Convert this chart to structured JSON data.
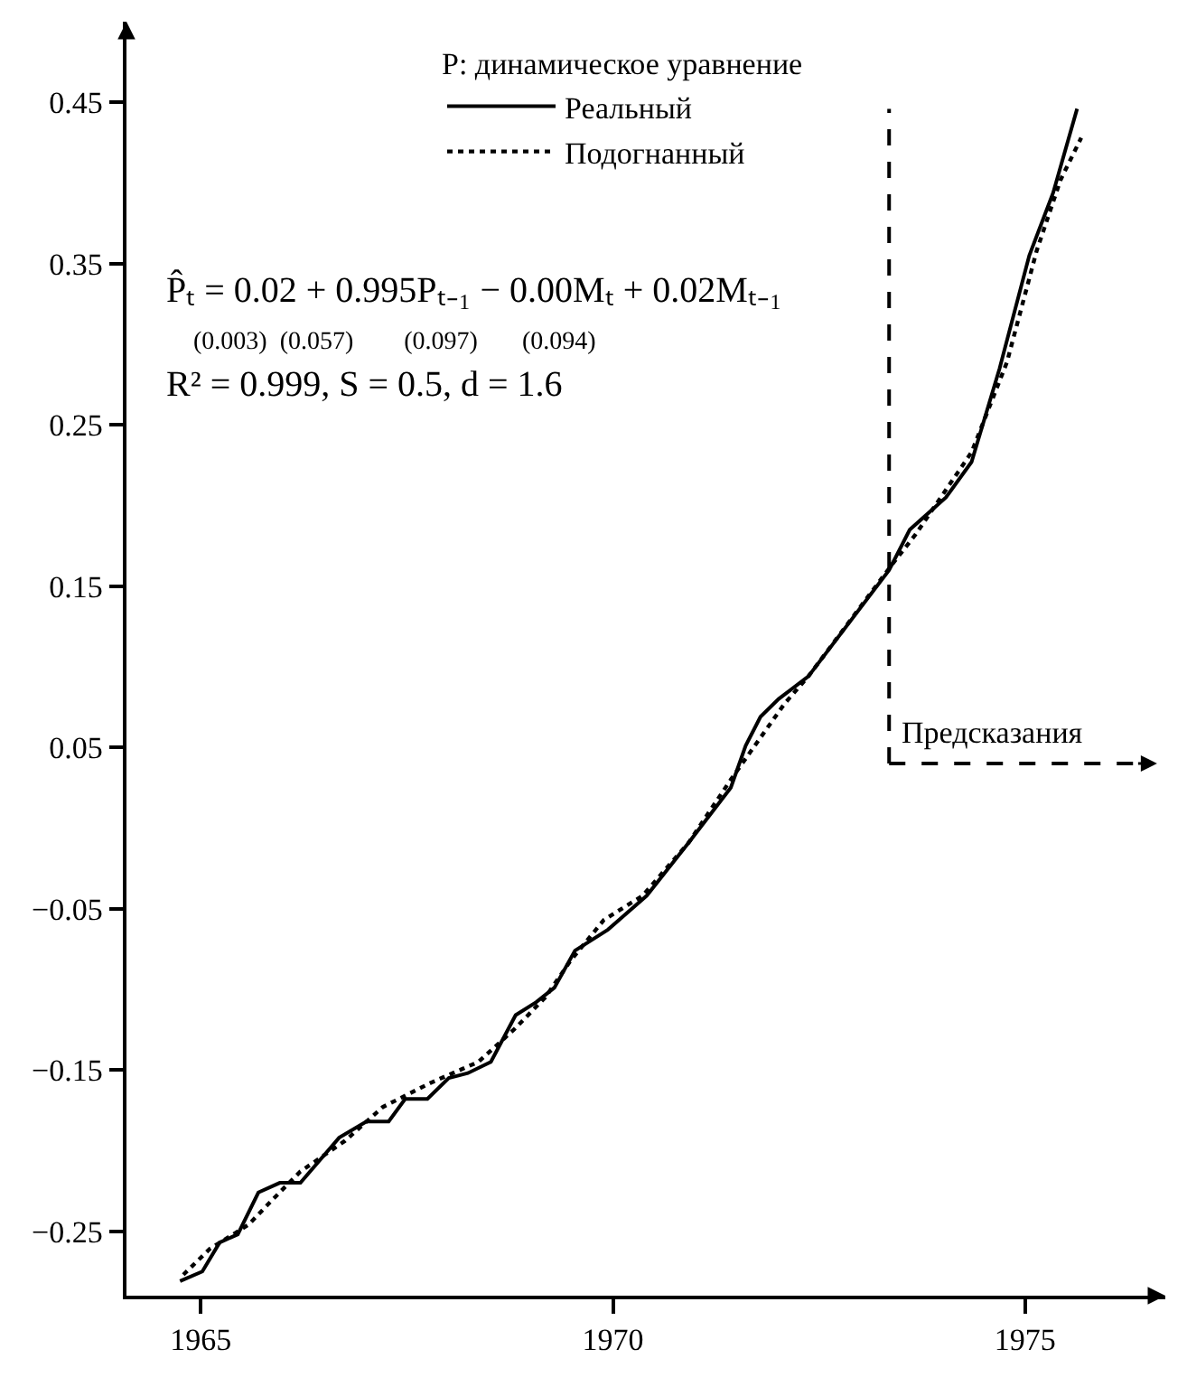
{
  "chart_data": {
    "type": "line",
    "legend_title": "P: динамическое уравнение",
    "series": [
      {
        "name": "Реальный",
        "color": "#000000",
        "line_style": "solid",
        "x": [
          1964.75,
          1965.02,
          1965.23,
          1965.45,
          1965.7,
          1965.96,
          1966.21,
          1966.68,
          1967.01,
          1967.28,
          1967.48,
          1967.75,
          1968.01,
          1968.24,
          1968.52,
          1968.82,
          1969.07,
          1969.29,
          1969.54,
          1969.94,
          1970.41,
          1970.92,
          1971.43,
          1971.61,
          1971.79,
          1972.01,
          1972.37,
          1973.35,
          1973.6,
          1974.04,
          1974.35,
          1974.69,
          1975.05,
          1975.34,
          1975.63
        ],
        "values": [
          -0.281,
          -0.275,
          -0.257,
          -0.252,
          -0.226,
          -0.22,
          -0.22,
          -0.192,
          -0.182,
          -0.182,
          -0.168,
          -0.168,
          -0.155,
          -0.152,
          -0.145,
          -0.116,
          -0.108,
          -0.099,
          -0.076,
          -0.063,
          -0.042,
          -0.009,
          0.025,
          0.051,
          0.069,
          0.08,
          0.094,
          0.16,
          0.185,
          0.205,
          0.227,
          0.285,
          0.355,
          0.394,
          0.446
        ]
      },
      {
        "name": "Подогнанный",
        "color": "#000000",
        "line_style": "dotted",
        "x": [
          1964.79,
          1965.11,
          1965.58,
          1965.88,
          1966.21,
          1966.75,
          1967.21,
          1967.79,
          1968.37,
          1968.8,
          1969.18,
          1969.49,
          1969.89,
          1970.36,
          1970.92,
          1971.43,
          1971.72,
          1972.08,
          1972.37,
          1973.38,
          1973.67,
          1974.35,
          1974.78,
          1975.14,
          1975.43,
          1975.68
        ],
        "values": [
          -0.277,
          -0.261,
          -0.246,
          -0.23,
          -0.213,
          -0.194,
          -0.173,
          -0.158,
          -0.145,
          -0.125,
          -0.105,
          -0.082,
          -0.057,
          -0.042,
          -0.009,
          0.03,
          0.051,
          0.077,
          0.094,
          0.163,
          0.182,
          0.233,
          0.289,
          0.358,
          0.402,
          0.428
        ]
      }
    ],
    "xlim": [
      1964.1,
      1976.7
    ],
    "xticks": [
      1965,
      1970,
      1975
    ],
    "ylim": [
      -0.29,
      0.5
    ],
    "yticks": [
      {
        "value": -0.25,
        "label": "−0.25"
      },
      {
        "value": -0.15,
        "label": "−0.15"
      },
      {
        "value": -0.05,
        "label": "−0.05"
      },
      0.05,
      0.15,
      0.25,
      0.35,
      0.45
    ],
    "annotations": [
      "P̂ₜ = 0.02 + 0.995Pₜ₋₁ − 0.00Mₜ + 0.02Mₜ₋₁",
      "(0.003)  (0.057)        (0.097)       (0.094)",
      "R² = 0.999, S = 0.5, d = 1.6",
      {
        "text": "Предсказания",
        "x": 1973.35,
        "y": 0.04
      }
    ],
    "ref_lines": [
      {
        "axis": "x",
        "value": 1973.35,
        "line_style": "dashed",
        "color": "#000000"
      }
    ],
    "legend": "top",
    "marker": "none"
  }
}
